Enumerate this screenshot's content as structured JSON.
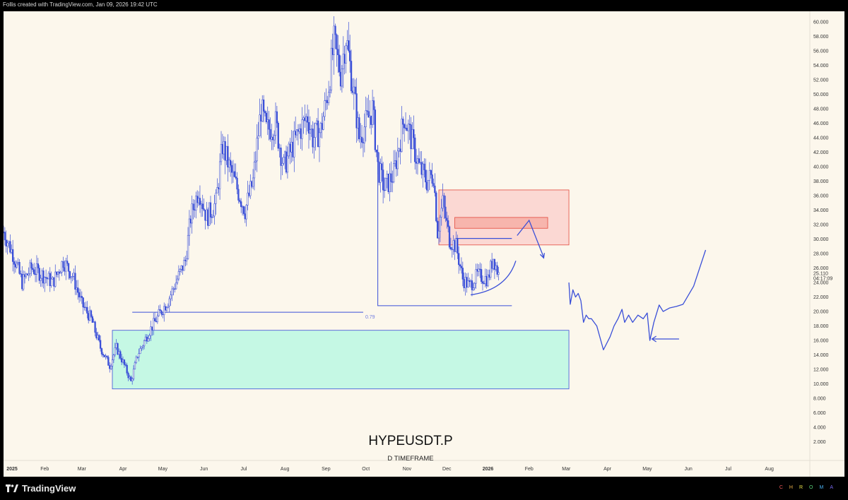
{
  "header": {
    "caption": "Follis created with TradingView.com, Jan 09, 2026 19:42 UTC"
  },
  "footer": {
    "logo_text": "TradingView",
    "brand": "CHROMA",
    "brand_colors": [
      "#f05a5a",
      "#f0b44a",
      "#e8e04a",
      "#5ad27a",
      "#4ab0f0",
      "#7a6af0"
    ]
  },
  "chart_data": {
    "type": "candlestick",
    "symbol_title": "HYPEUSDT.P",
    "subtitle": "D TIMEFRAME",
    "y_ticks": [
      "60.000",
      "58.000",
      "56.000",
      "54.000",
      "52.000",
      "50.000",
      "48.000",
      "46.000",
      "44.000",
      "42.000",
      "40.000",
      "38.000",
      "36.000",
      "34.000",
      "32.000",
      "30.000",
      "28.000",
      "26.000",
      "24.000",
      "22.000",
      "20.000",
      "18.000",
      "16.000",
      "14.000",
      "12.000",
      "10.000",
      "8.000",
      "6.000",
      "4.000",
      "2.000"
    ],
    "y_range": [
      0,
      61
    ],
    "x_ticks": [
      "2025",
      "Feb",
      "Mar",
      "Apr",
      "May",
      "Jun",
      "Jul",
      "Aug",
      "Sep",
      "Oct",
      "Nov",
      "Dec",
      "2026",
      "Feb",
      "Mar",
      "Apr",
      "May",
      "Jun",
      "Jul",
      "Aug"
    ],
    "bold_x_ticks": [
      "2025",
      "2026"
    ],
    "x_range": [
      "2025-01-01",
      "2026-08-31"
    ],
    "last_price": "25.110",
    "countdown": "04:17:09",
    "price_path": [
      [
        "2025-01-01",
        31
      ],
      [
        "2025-01-08",
        28
      ],
      [
        "2025-01-15",
        24
      ],
      [
        "2025-01-22",
        26
      ],
      [
        "2025-01-31",
        25
      ],
      [
        "2025-02-07",
        24
      ],
      [
        "2025-02-15",
        27
      ],
      [
        "2025-02-22",
        25
      ],
      [
        "2025-03-01",
        21
      ],
      [
        "2025-03-08",
        19
      ],
      [
        "2025-03-15",
        15
      ],
      [
        "2025-03-22",
        12.5
      ],
      [
        "2025-03-27",
        15
      ],
      [
        "2025-04-01",
        13
      ],
      [
        "2025-04-07",
        10.3
      ],
      [
        "2025-04-12",
        14
      ],
      [
        "2025-04-20",
        17
      ],
      [
        "2025-04-28",
        19.5
      ],
      [
        "2025-05-05",
        21.5
      ],
      [
        "2025-05-12",
        24.5
      ],
      [
        "2025-05-18",
        27
      ],
      [
        "2025-05-22",
        33
      ],
      [
        "2025-05-28",
        37
      ],
      [
        "2025-06-03",
        33
      ],
      [
        "2025-06-10",
        35
      ],
      [
        "2025-06-15",
        43
      ],
      [
        "2025-06-20",
        40
      ],
      [
        "2025-06-28",
        36
      ],
      [
        "2025-07-02",
        34
      ],
      [
        "2025-07-08",
        38
      ],
      [
        "2025-07-14",
        48
      ],
      [
        "2025-07-18",
        45
      ],
      [
        "2025-07-25",
        46
      ],
      [
        "2025-07-31",
        40
      ],
      [
        "2025-08-05",
        42
      ],
      [
        "2025-08-12",
        45
      ],
      [
        "2025-08-18",
        47
      ],
      [
        "2025-08-22",
        44
      ],
      [
        "2025-08-28",
        45
      ],
      [
        "2025-09-02",
        50
      ],
      [
        "2025-09-07",
        57
      ],
      [
        "2025-09-12",
        53
      ],
      [
        "2025-09-16",
        58
      ],
      [
        "2025-09-22",
        50
      ],
      [
        "2025-09-26",
        44
      ],
      [
        "2025-10-01",
        46
      ],
      [
        "2025-10-06",
        48
      ],
      [
        "2025-10-10",
        40
      ],
      [
        "2025-10-15",
        37
      ],
      [
        "2025-10-22",
        39
      ],
      [
        "2025-10-30",
        47
      ],
      [
        "2025-11-04",
        44
      ],
      [
        "2025-11-10",
        40
      ],
      [
        "2025-11-16",
        38
      ],
      [
        "2025-11-21",
        39
      ],
      [
        "2025-11-24",
        31
      ],
      [
        "2025-11-28",
        35
      ],
      [
        "2025-12-03",
        30
      ],
      [
        "2025-12-08",
        29
      ],
      [
        "2025-12-13",
        24.5
      ],
      [
        "2025-12-18",
        23.5
      ],
      [
        "2025-12-24",
        25
      ],
      [
        "2026-01-01",
        24.5
      ],
      [
        "2026-01-05",
        27.5
      ],
      [
        "2026-01-09",
        25.1
      ]
    ],
    "annotations": {
      "fib_label": "0.79",
      "fib_level": 19.9,
      "fib_range": [
        "2025-04-08",
        "2025-09-29"
      ],
      "demand_zone": {
        "from": "2025-03-24",
        "to": "2026-03-03",
        "low": 9.3,
        "high": 17.4,
        "color": "#c5f8e4"
      },
      "supply_zone": {
        "from": "2025-11-25",
        "to": "2026-03-03",
        "low": 29.2,
        "high": 36.8,
        "color": "#fbd8d3"
      },
      "supply_inner": [
        31.5,
        33.0
      ],
      "bracket": {
        "from": "2025-10-10",
        "to": "2026-01-19",
        "top": 43,
        "bottom": 20.8
      },
      "line_color": "#3a4fd8"
    }
  }
}
